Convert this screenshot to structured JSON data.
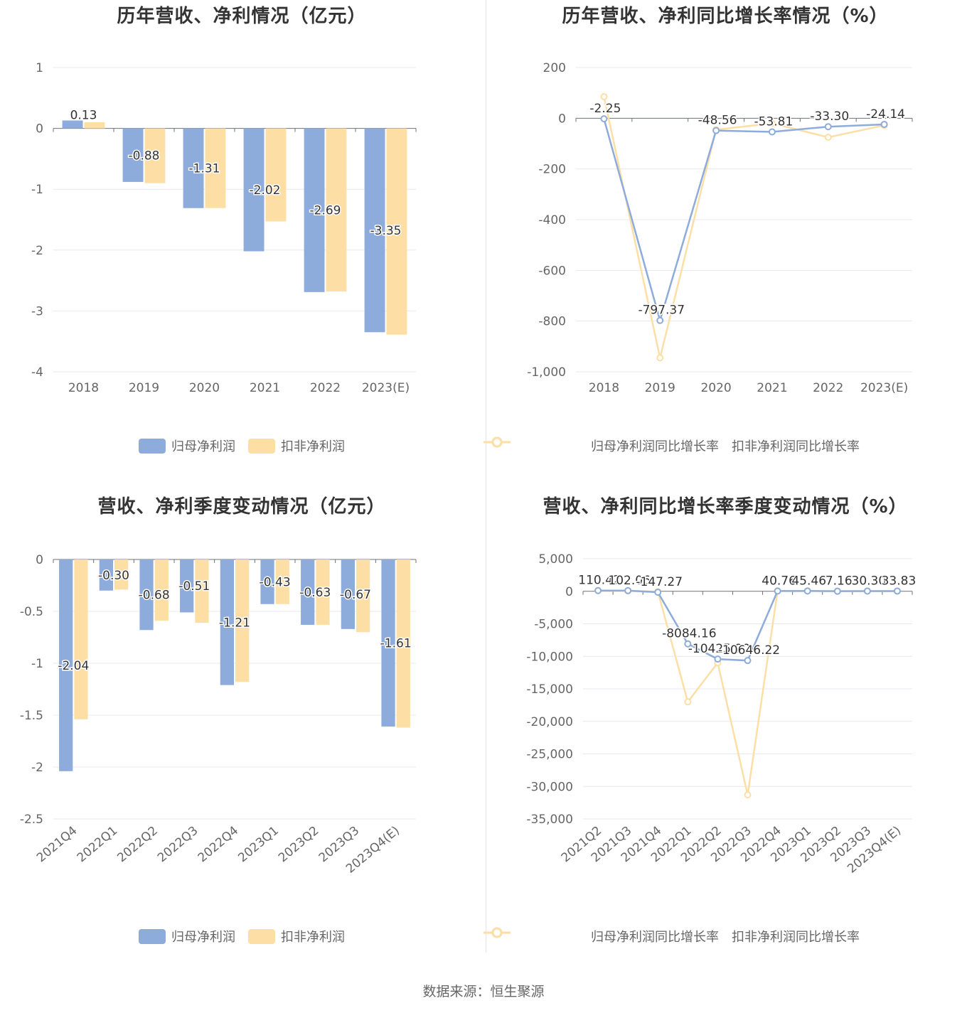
{
  "colors": {
    "primary": "#8eacdb",
    "secondary": "#fddfa6",
    "grid": "#e6e8f0",
    "axis": "#6e7079",
    "label_text": "#999999"
  },
  "source_text": "数据来源：恒生聚源",
  "panels": [
    {
      "title": "历年营收、净利情况（亿元）",
      "legend": [
        "归母净利润",
        "扣非净利润"
      ],
      "legend_kind": "bar"
    },
    {
      "title": "历年营收、净利同比增长率情况（%）",
      "legend": [
        "归母净利润同比增长率",
        "扣非净利润同比增长率"
      ],
      "legend_kind": "line"
    },
    {
      "title": "营收、净利季度变动情况（亿元）",
      "legend": [
        "归母净利润",
        "扣非净利润"
      ],
      "legend_kind": "bar"
    },
    {
      "title": "营收、净利同比增长率季度变动情况（%）",
      "legend": [
        "归母净利润同比增长率",
        "扣非净利润同比增长率"
      ],
      "legend_kind": "line"
    }
  ],
  "chart_data": [
    {
      "type": "bar",
      "title": "历年营收、净利情况（亿元）",
      "categories": [
        "2018",
        "2019",
        "2020",
        "2021",
        "2022",
        "2023(E)"
      ],
      "yticks": [
        "1",
        "0",
        "-1",
        "-2",
        "-3",
        "-4"
      ],
      "ylim": [
        -4,
        1
      ],
      "series": [
        {
          "name": "归母净利润",
          "values": [
            0.13,
            -0.88,
            -1.31,
            -2.02,
            -2.69,
            -3.35
          ],
          "labels": [
            "0.13",
            "-0.88",
            "-1.31",
            "-2.02",
            "-2.69",
            "-3.35"
          ]
        },
        {
          "name": "扣非净利润",
          "values": [
            0.1,
            -0.9,
            -1.31,
            -1.53,
            -2.68,
            -3.39
          ]
        }
      ],
      "grid": true,
      "legend_position": "bottom"
    },
    {
      "type": "line",
      "title": "历年营收、净利同比增长率情况（%）",
      "categories": [
        "2018",
        "2019",
        "2020",
        "2021",
        "2022",
        "2023(E)"
      ],
      "yticks": [
        "200",
        "0",
        "-200",
        "-400",
        "-600",
        "-800",
        "-1,000"
      ],
      "ylim": [
        -1000,
        200
      ],
      "series": [
        {
          "name": "归母净利润同比增长率",
          "values": [
            -2.25,
            -797.37,
            -48.56,
            -53.81,
            -33.3,
            -24.14
          ],
          "labels": [
            "-2.25",
            "-797.37",
            "-48.56",
            "-53.81",
            "-33.30",
            "-24.14"
          ]
        },
        {
          "name": "扣非净利润同比增长率",
          "values": [
            85,
            -945,
            -45,
            -20,
            -75,
            -28
          ]
        }
      ],
      "grid": true,
      "legend_position": "bottom"
    },
    {
      "type": "bar",
      "title": "营收、净利季度变动情况（亿元）",
      "categories": [
        "2021Q4",
        "2022Q1",
        "2022Q2",
        "2022Q3",
        "2022Q4",
        "2023Q1",
        "2023Q2",
        "2023Q3",
        "2023Q4(E)"
      ],
      "yticks": [
        "0",
        "-0.5",
        "-1",
        "-1.5",
        "-2",
        "-2.5"
      ],
      "ylim": [
        -2.5,
        0
      ],
      "series": [
        {
          "name": "归母净利润",
          "values": [
            -2.04,
            -0.3,
            -0.68,
            -0.51,
            -1.21,
            -0.43,
            -0.63,
            -0.67,
            -1.61
          ],
          "labels": [
            "-2.04",
            "-0.30",
            "-0.68",
            "-0.51",
            "-1.21",
            "-0.43",
            "-0.63",
            "-0.67",
            "-1.61"
          ]
        },
        {
          "name": "扣非净利润",
          "values": [
            -1.54,
            -0.29,
            -0.59,
            -0.61,
            -1.18,
            -0.43,
            -0.63,
            -0.7,
            -1.62
          ]
        }
      ],
      "grid": true,
      "legend_position": "bottom"
    },
    {
      "type": "line",
      "title": "营收、净利同比增长率季度变动情况（%）",
      "categories": [
        "2021Q2",
        "2021Q3",
        "2021Q4",
        "2022Q1",
        "2022Q2",
        "2022Q3",
        "2022Q4",
        "2023Q1",
        "2023Q2",
        "2023Q3",
        "2023Q4(E)"
      ],
      "yticks": [
        "5,000",
        "0",
        "-5,000",
        "-10,000",
        "-15,000",
        "-20,000",
        "-25,000",
        "-30,000",
        "-35,000"
      ],
      "ylim": [
        -35000,
        5000
      ],
      "series": [
        {
          "name": "归母净利润同比增长率",
          "values": [
            110.42,
            102.06,
            -147.27,
            -8084.16,
            -10425.9,
            -10646.22,
            40.76,
            45.46,
            7.16,
            30.3,
            33.83
          ],
          "labels": [
            "110.42",
            "102.06",
            "-147.27",
            "-8084.16",
            "-10425.90",
            "-10646.22",
            "40.76",
            "45.46",
            "7.16",
            "30.30",
            "33.83"
          ]
        },
        {
          "name": "扣非净利润同比增长率",
          "values": [
            80,
            60,
            -50,
            -17000,
            -11000,
            -31300,
            50,
            40,
            10,
            20,
            30
          ]
        }
      ],
      "grid": true,
      "legend_position": "bottom"
    }
  ]
}
